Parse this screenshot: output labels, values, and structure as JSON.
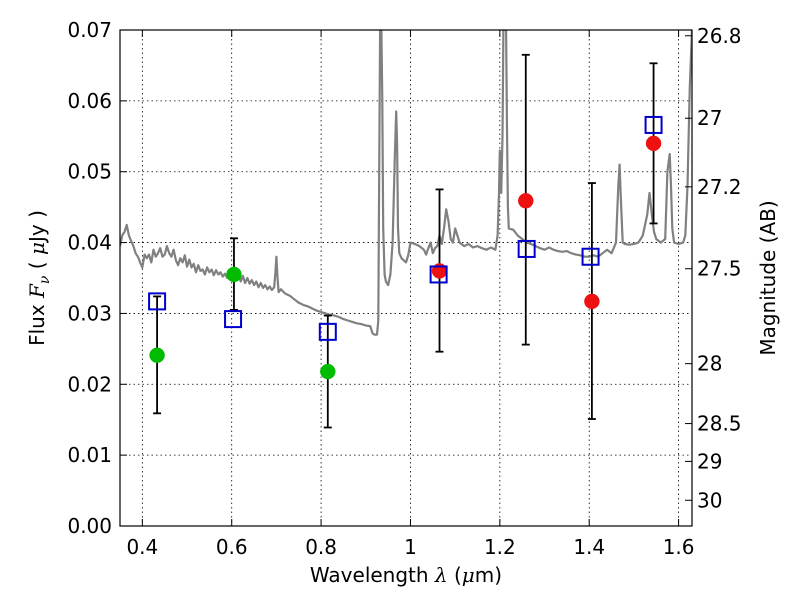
{
  "chart_data": {
    "type": "scatter",
    "title": "",
    "xlabel": {
      "prefix": "Wavelength  ",
      "var": "λ",
      "unit": " (",
      "mu": "μ",
      "unit_end": "m)"
    },
    "ylabel": {
      "prefix": "Flux  ",
      "var": "F",
      "sub": "ν",
      "unit_open": "  ( ",
      "mu": "μ",
      "unit_end": "Jy )"
    },
    "y2label": "Magnitude (AB)",
    "xlim": [
      0.35,
      1.63
    ],
    "ylim": [
      0.0,
      0.07
    ],
    "grid": true,
    "x_ticks": [
      {
        "value": 0.4,
        "label": "0.4"
      },
      {
        "value": 0.6,
        "label": "0.6"
      },
      {
        "value": 0.8,
        "label": "0.8"
      },
      {
        "value": 1.0,
        "label": "1"
      },
      {
        "value": 1.2,
        "label": "1.2"
      },
      {
        "value": 1.4,
        "label": "1.4"
      },
      {
        "value": 1.6,
        "label": "1.6"
      }
    ],
    "y_ticks": [
      {
        "value": 0.0,
        "label": "0.00"
      },
      {
        "value": 0.01,
        "label": "0.01"
      },
      {
        "value": 0.02,
        "label": "0.02"
      },
      {
        "value": 0.03,
        "label": "0.03"
      },
      {
        "value": 0.04,
        "label": "0.04"
      },
      {
        "value": 0.05,
        "label": "0.05"
      },
      {
        "value": 0.06,
        "label": "0.06"
      },
      {
        "value": 0.07,
        "label": "0.07"
      }
    ],
    "y2_ticks": [
      {
        "mag": 26.8,
        "label": "26.8"
      },
      {
        "mag": 27.0,
        "label": "27"
      },
      {
        "mag": 27.2,
        "label": "27.2"
      },
      {
        "mag": 27.5,
        "label": "27.5"
      },
      {
        "mag": 28.0,
        "label": "28"
      },
      {
        "mag": 28.5,
        "label": "28.5"
      },
      {
        "mag": 29.0,
        "label": "29"
      },
      {
        "mag": 30.0,
        "label": "30"
      }
    ],
    "series": [
      {
        "name": "model-spectrum",
        "style": "line",
        "color": "#808080",
        "points": [
          [
            0.35,
            0.0395
          ],
          [
            0.355,
            0.041
          ],
          [
            0.36,
            0.0415
          ],
          [
            0.365,
            0.0425
          ],
          [
            0.37,
            0.041
          ],
          [
            0.375,
            0.0402
          ],
          [
            0.38,
            0.0395
          ],
          [
            0.385,
            0.0385
          ],
          [
            0.39,
            0.038
          ],
          [
            0.395,
            0.0372
          ],
          [
            0.4,
            0.0365
          ],
          [
            0.405,
            0.0383
          ],
          [
            0.41,
            0.0378
          ],
          [
            0.415,
            0.0383
          ],
          [
            0.42,
            0.0372
          ],
          [
            0.425,
            0.039
          ],
          [
            0.43,
            0.038
          ],
          [
            0.435,
            0.0385
          ],
          [
            0.44,
            0.0392
          ],
          [
            0.445,
            0.038
          ],
          [
            0.45,
            0.0383
          ],
          [
            0.455,
            0.0395
          ],
          [
            0.46,
            0.0385
          ],
          [
            0.465,
            0.038
          ],
          [
            0.47,
            0.039
          ],
          [
            0.475,
            0.0375
          ],
          [
            0.48,
            0.0368
          ],
          [
            0.485,
            0.0378
          ],
          [
            0.49,
            0.0372
          ],
          [
            0.495,
            0.0382
          ],
          [
            0.5,
            0.0366
          ],
          [
            0.505,
            0.0376
          ],
          [
            0.51,
            0.0365
          ],
          [
            0.515,
            0.037
          ],
          [
            0.52,
            0.0358
          ],
          [
            0.525,
            0.0368
          ],
          [
            0.53,
            0.036
          ],
          [
            0.535,
            0.0362
          ],
          [
            0.54,
            0.0355
          ],
          [
            0.545,
            0.0365
          ],
          [
            0.55,
            0.0358
          ],
          [
            0.555,
            0.0362
          ],
          [
            0.56,
            0.0354
          ],
          [
            0.565,
            0.0361
          ],
          [
            0.57,
            0.0355
          ],
          [
            0.575,
            0.0358
          ],
          [
            0.58,
            0.0352
          ],
          [
            0.585,
            0.0356
          ],
          [
            0.59,
            0.035
          ],
          [
            0.595,
            0.036
          ],
          [
            0.6,
            0.0352
          ],
          [
            0.605,
            0.0355
          ],
          [
            0.61,
            0.0348
          ],
          [
            0.615,
            0.0356
          ],
          [
            0.62,
            0.0345
          ],
          [
            0.625,
            0.0353
          ],
          [
            0.63,
            0.0343
          ],
          [
            0.635,
            0.035
          ],
          [
            0.64,
            0.0342
          ],
          [
            0.645,
            0.0347
          ],
          [
            0.65,
            0.034
          ],
          [
            0.655,
            0.0345
          ],
          [
            0.66,
            0.0337
          ],
          [
            0.665,
            0.0343
          ],
          [
            0.67,
            0.0336
          ],
          [
            0.675,
            0.034
          ],
          [
            0.68,
            0.0334
          ],
          [
            0.685,
            0.0338
          ],
          [
            0.69,
            0.0333
          ],
          [
            0.695,
            0.0337
          ],
          [
            0.698,
            0.036
          ],
          [
            0.7,
            0.038
          ],
          [
            0.702,
            0.0355
          ],
          [
            0.705,
            0.033
          ],
          [
            0.71,
            0.0334
          ],
          [
            0.72,
            0.0328
          ],
          [
            0.73,
            0.0325
          ],
          [
            0.74,
            0.032
          ],
          [
            0.75,
            0.0315
          ],
          [
            0.76,
            0.0312
          ],
          [
            0.77,
            0.031
          ],
          [
            0.78,
            0.0307
          ],
          [
            0.79,
            0.0304
          ],
          [
            0.8,
            0.0302
          ],
          [
            0.81,
            0.03
          ],
          [
            0.82,
            0.0298
          ],
          [
            0.83,
            0.0297
          ],
          [
            0.84,
            0.0295
          ],
          [
            0.85,
            0.0292
          ],
          [
            0.86,
            0.029
          ],
          [
            0.87,
            0.0288
          ],
          [
            0.88,
            0.0286
          ],
          [
            0.89,
            0.0285
          ],
          [
            0.9,
            0.0283
          ],
          [
            0.91,
            0.0282
          ],
          [
            0.915,
            0.0272
          ],
          [
            0.92,
            0.027
          ],
          [
            0.925,
            0.027
          ],
          [
            0.928,
            0.029
          ],
          [
            0.93,
            0.05
          ],
          [
            0.932,
            0.07
          ],
          [
            0.935,
            0.07
          ],
          [
            0.937,
            0.06
          ],
          [
            0.939,
            0.042
          ],
          [
            0.942,
            0.0355
          ],
          [
            0.945,
            0.0345
          ],
          [
            0.95,
            0.034
          ],
          [
            0.955,
            0.0355
          ],
          [
            0.96,
            0.04
          ],
          [
            0.965,
            0.052
          ],
          [
            0.968,
            0.0585
          ],
          [
            0.97,
            0.054
          ],
          [
            0.972,
            0.042
          ],
          [
            0.975,
            0.0385
          ],
          [
            0.98,
            0.0378
          ],
          [
            0.99,
            0.0372
          ],
          [
            0.995,
            0.0382
          ],
          [
            1.0,
            0.04
          ],
          [
            1.01,
            0.0398
          ],
          [
            1.02,
            0.0395
          ],
          [
            1.03,
            0.039
          ],
          [
            1.035,
            0.0383
          ],
          [
            1.04,
            0.0392
          ],
          [
            1.045,
            0.04
          ],
          [
            1.05,
            0.0385
          ],
          [
            1.055,
            0.0392
          ],
          [
            1.06,
            0.0395
          ],
          [
            1.065,
            0.041
          ],
          [
            1.07,
            0.0398
          ],
          [
            1.075,
            0.042
          ],
          [
            1.08,
            0.0447
          ],
          [
            1.085,
            0.043
          ],
          [
            1.09,
            0.0405
          ],
          [
            1.095,
            0.04
          ],
          [
            1.1,
            0.042
          ],
          [
            1.105,
            0.041
          ],
          [
            1.11,
            0.04
          ],
          [
            1.12,
            0.0395
          ],
          [
            1.13,
            0.0398
          ],
          [
            1.14,
            0.0393
          ],
          [
            1.15,
            0.0395
          ],
          [
            1.16,
            0.0392
          ],
          [
            1.17,
            0.039
          ],
          [
            1.18,
            0.0393
          ],
          [
            1.19,
            0.039
          ],
          [
            1.195,
            0.041
          ],
          [
            1.198,
            0.047
          ],
          [
            1.2,
            0.053
          ],
          [
            1.203,
            0.047
          ],
          [
            1.206,
            0.055
          ],
          [
            1.208,
            0.07
          ],
          [
            1.214,
            0.07
          ],
          [
            1.216,
            0.056
          ],
          [
            1.218,
            0.045
          ],
          [
            1.22,
            0.042
          ],
          [
            1.23,
            0.0418
          ],
          [
            1.24,
            0.041
          ],
          [
            1.25,
            0.0405
          ],
          [
            1.26,
            0.04
          ],
          [
            1.27,
            0.0398
          ],
          [
            1.28,
            0.0395
          ],
          [
            1.29,
            0.0392
          ],
          [
            1.3,
            0.039
          ],
          [
            1.31,
            0.0393
          ],
          [
            1.32,
            0.039
          ],
          [
            1.33,
            0.0388
          ],
          [
            1.34,
            0.0387
          ],
          [
            1.35,
            0.0388
          ],
          [
            1.36,
            0.0385
          ],
          [
            1.37,
            0.0383
          ],
          [
            1.38,
            0.0382
          ],
          [
            1.39,
            0.038
          ],
          [
            1.4,
            0.038
          ],
          [
            1.41,
            0.0382
          ],
          [
            1.42,
            0.038
          ],
          [
            1.43,
            0.0385
          ],
          [
            1.44,
            0.039
          ],
          [
            1.45,
            0.0385
          ],
          [
            1.46,
            0.04
          ],
          [
            1.465,
            0.048
          ],
          [
            1.468,
            0.051
          ],
          [
            1.471,
            0.046
          ],
          [
            1.475,
            0.04
          ],
          [
            1.48,
            0.0398
          ],
          [
            1.49,
            0.0397
          ],
          [
            1.5,
            0.0398
          ],
          [
            1.51,
            0.04
          ],
          [
            1.52,
            0.041
          ],
          [
            1.53,
            0.044
          ],
          [
            1.535,
            0.047
          ],
          [
            1.54,
            0.044
          ],
          [
            1.545,
            0.0415
          ],
          [
            1.55,
            0.0405
          ],
          [
            1.56,
            0.04
          ],
          [
            1.57,
            0.0405
          ],
          [
            1.575,
            0.05
          ],
          [
            1.58,
            0.0525
          ],
          [
            1.583,
            0.048
          ],
          [
            1.586,
            0.042
          ],
          [
            1.59,
            0.04
          ],
          [
            1.6,
            0.0398
          ],
          [
            1.61,
            0.04
          ],
          [
            1.615,
            0.041
          ],
          [
            1.62,
            0.048
          ],
          [
            1.625,
            0.062
          ],
          [
            1.63,
            0.07
          ]
        ]
      },
      {
        "name": "observed-green",
        "style": "marker-circle",
        "color": "#00bb00",
        "points": [
          [
            0.433,
            0.0241
          ],
          [
            0.605,
            0.0355
          ],
          [
            0.815,
            0.0218
          ]
        ]
      },
      {
        "name": "observed-red",
        "style": "marker-circle",
        "color": "#ee1111",
        "points": [
          [
            1.065,
            0.036
          ],
          [
            1.258,
            0.0459
          ],
          [
            1.406,
            0.0317
          ],
          [
            1.544,
            0.054
          ]
        ]
      },
      {
        "name": "model-photometry",
        "style": "marker-square",
        "color": "#0000cc",
        "points": [
          [
            0.433,
            0.0317
          ],
          [
            0.603,
            0.0292
          ],
          [
            0.815,
            0.0274
          ],
          [
            1.063,
            0.0355
          ],
          [
            1.26,
            0.0391
          ],
          [
            1.403,
            0.038
          ],
          [
            1.544,
            0.0566
          ]
        ]
      }
    ],
    "errorbars": [
      {
        "x": 0.433,
        "low": 0.0159,
        "high": 0.0324
      },
      {
        "x": 0.605,
        "low": 0.0305,
        "high": 0.0406
      },
      {
        "x": 0.815,
        "low": 0.0139,
        "high": 0.0297
      },
      {
        "x": 1.065,
        "low": 0.0246,
        "high": 0.0475
      },
      {
        "x": 1.258,
        "low": 0.0256,
        "high": 0.0665
      },
      {
        "x": 1.406,
        "low": 0.0151,
        "high": 0.0484
      },
      {
        "x": 1.544,
        "low": 0.0427,
        "high": 0.0653
      }
    ]
  }
}
